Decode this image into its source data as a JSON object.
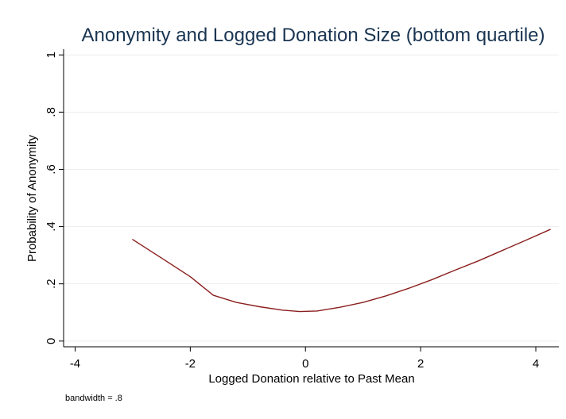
{
  "chart_data": {
    "type": "line",
    "title": "Anonymity and Logged Donation Size (bottom quartile)",
    "xlabel": "Logged Donation relative to Past Mean",
    "ylabel": "Probability of Anonymity",
    "note": "bandwidth = .8",
    "xlim": [
      -4.2,
      4.4
    ],
    "ylim": [
      -0.02,
      1.02
    ],
    "x_ticks": [
      -4,
      -2,
      0,
      2,
      4
    ],
    "x_tick_labels": [
      "-4",
      "-2",
      "0",
      "2",
      "4"
    ],
    "y_ticks": [
      0,
      0.2,
      0.4,
      0.6,
      0.8,
      1
    ],
    "y_tick_labels": [
      "0",
      ".2",
      ".4",
      ".6",
      ".8",
      "1"
    ],
    "grid": true,
    "legend": false,
    "colors": {
      "line": "#8b1e1e",
      "grid": "#eeeeee",
      "axis": "#000000",
      "title": "#1a3552",
      "text": "#000000"
    },
    "series": [
      {
        "x": [
          -3.0,
          -2.5,
          -2.0,
          -1.6,
          -1.2,
          -0.8,
          -0.4,
          -0.1,
          0.2,
          0.6,
          1.0,
          1.4,
          1.8,
          2.2,
          2.6,
          3.0,
          3.4,
          3.8,
          4.25
        ],
        "y": [
          0.355,
          0.29,
          0.225,
          0.16,
          0.135,
          0.12,
          0.108,
          0.103,
          0.105,
          0.118,
          0.135,
          0.158,
          0.185,
          0.215,
          0.248,
          0.28,
          0.315,
          0.35,
          0.39
        ]
      }
    ]
  }
}
